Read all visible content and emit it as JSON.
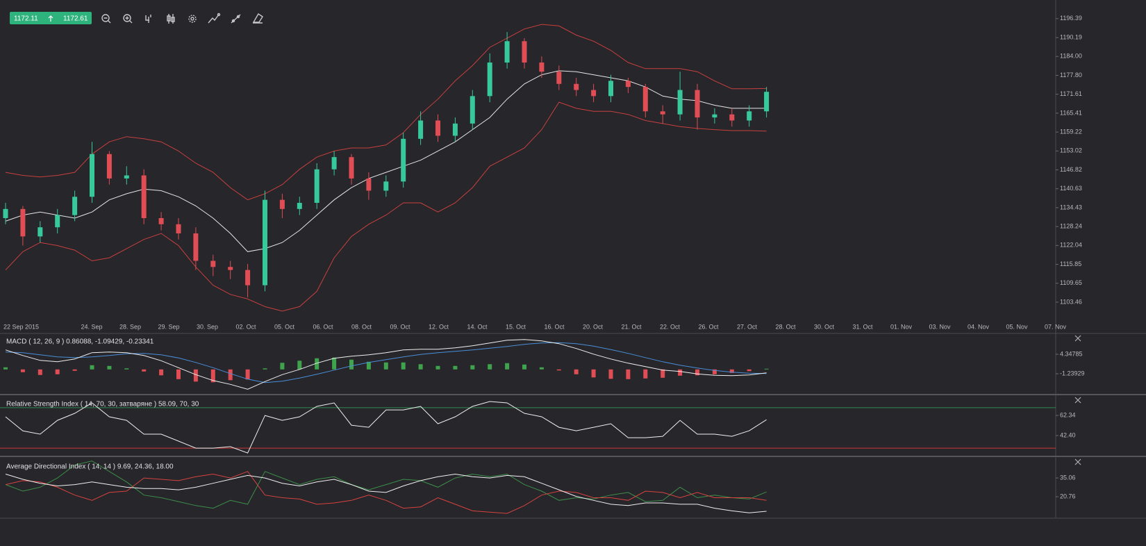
{
  "toolbar": {
    "bid": 1172.11,
    "ask": 1172.61
  },
  "chart_data": [
    {
      "type": "candlestick",
      "up_color": "#38c99b",
      "down_color": "#e04d54",
      "ylim": [
        1097.3,
        1202.5
      ],
      "yticks": [
        1196.39,
        1190.19,
        {
          "value": 1184,
          "label": "1184.00"
        },
        {
          "value": 1177.8,
          "label": "1177.80"
        },
        1171.61,
        1165.41,
        1159.22,
        1153.02,
        1146.82,
        1140.63,
        1134.43,
        1128.24,
        1122.04,
        1115.85,
        1109.65,
        1103.46
      ],
      "x_labels": [
        "22 Sep 2015",
        "24. Sep",
        "28. Sep",
        "29. Sep",
        "30. Sep",
        "02. Oct",
        "05. Oct",
        "06. Oct",
        "08. Oct",
        "09. Oct",
        "12. Oct",
        "14. Oct",
        "15. Oct",
        "16. Oct",
        "20. Oct",
        "21. Oct",
        "22. Oct",
        "26. Oct",
        "27. Oct",
        "28. Oct",
        "30. Oct",
        "31. Oct",
        "01. Nov",
        "03. Nov",
        "04. Nov",
        "05. Nov",
        "07. Nov"
      ],
      "open": [
        1131,
        1134,
        1125,
        1128,
        1132,
        1138,
        1152,
        1144,
        1145,
        1131,
        1129,
        1126,
        1117,
        1115,
        1114,
        1109,
        1137,
        1134,
        1136,
        1147,
        1151,
        1144,
        1140,
        1143,
        1157,
        1163,
        1158,
        1162,
        1171,
        1182,
        1189,
        1182,
        1179,
        1175,
        1173,
        1171,
        1176,
        1174,
        1166,
        1165,
        1173,
        1164,
        1165,
        1163,
        1166
      ],
      "high": [
        1136,
        1135,
        1130,
        1134,
        1140,
        1156,
        1153,
        1148,
        1147,
        1133,
        1131,
        1128,
        1119,
        1117,
        1116,
        1140,
        1139,
        1138,
        1149,
        1153,
        1152,
        1146,
        1145,
        1159,
        1166,
        1165,
        1164,
        1173,
        1185,
        1192,
        1190,
        1184,
        1181,
        1177,
        1175,
        1178,
        1177,
        1175,
        1168,
        1179,
        1175,
        1167,
        1167,
        1168,
        1174
      ],
      "low": [
        1129,
        1122,
        1123,
        1126,
        1130,
        1136,
        1142,
        1142,
        1129,
        1127,
        1124,
        1114,
        1112,
        1111,
        1105,
        1107,
        1131,
        1132,
        1134,
        1145,
        1142,
        1137,
        1138,
        1141,
        1155,
        1156,
        1156,
        1160,
        1169,
        1180,
        1180,
        1177,
        1173,
        1171,
        1169,
        1169,
        1172,
        1164,
        1162,
        1163,
        1160,
        1162,
        1161,
        1161,
        1164
      ],
      "close": [
        1134,
        1125,
        1128,
        1132,
        1138,
        1152,
        1144,
        1145,
        1131,
        1129,
        1126,
        1117,
        1115,
        1114,
        1109,
        1137,
        1134,
        1136,
        1147,
        1151,
        1144,
        1140,
        1143,
        1157,
        1163,
        1158,
        1162,
        1171,
        1182,
        1189,
        1182,
        1179,
        1175,
        1173,
        1171,
        1176,
        1174,
        1166,
        1165,
        1173,
        1164,
        1165,
        1163,
        1166,
        1172.4
      ],
      "bands": [
        {
          "color": "#c9403f",
          "values": [
            1146,
            1145,
            1144.5,
            1145,
            1146,
            1152,
            1156,
            1157.7,
            1157,
            1156,
            1153,
            1149,
            1146,
            1141,
            1137,
            1139,
            1142,
            1147,
            1151,
            1153,
            1154,
            1154,
            1155,
            1159,
            1165,
            1170,
            1176,
            1181,
            1187,
            1190,
            1193,
            1194.5,
            1194,
            1191,
            1189,
            1186,
            1182,
            1180,
            1180,
            1180,
            1179,
            1176,
            1173.4,
            1173.4,
            1173.5
          ]
        },
        {
          "color": "#e6e6e6",
          "values": [
            1130,
            1132,
            1133,
            1132,
            1131,
            1133,
            1137,
            1139,
            1140.5,
            1140,
            1138,
            1135,
            1131,
            1126,
            1120,
            1121,
            1123,
            1127,
            1132,
            1137,
            1141,
            1144,
            1146,
            1148,
            1150,
            1153,
            1156,
            1160,
            1164,
            1170,
            1175,
            1178,
            1179.3,
            1179,
            1178,
            1177,
            1176,
            1174,
            1171,
            1170,
            1169.5,
            1168,
            1167,
            1167,
            1167
          ]
        },
        {
          "color": "#c9403f",
          "values": [
            1114,
            1120,
            1123,
            1122,
            1120.5,
            1117,
            1118,
            1121,
            1124,
            1126,
            1122,
            1115,
            1109,
            1106,
            1104.5,
            1102,
            1100.5,
            1102,
            1107,
            1118,
            1125,
            1129,
            1132,
            1136,
            1136,
            1133,
            1136,
            1141,
            1148,
            1151,
            1154,
            1160,
            1169,
            1167,
            1166,
            1166,
            1165,
            1163,
            1162,
            1161,
            1160.4,
            1160,
            1159.7,
            1159.7,
            1159.5
          ]
        }
      ]
    },
    {
      "type": "macd",
      "title": "MACD ( 12, 26, 9 ) 0.86088, -1.09429, -0.23341",
      "ylim": [
        -7.23,
        10.34
      ],
      "yticks": [
        4.34785,
        -1.23929
      ],
      "series": [
        {
          "style": "bars",
          "color": "#3fa34d",
          "negative_color": "#e04d54",
          "values": [
            0.6,
            -0.8,
            -1.6,
            -1.4,
            -0.4,
            1.2,
            1,
            0.3,
            -0.6,
            -1.7,
            -2.8,
            -3.5,
            -3.7,
            -3.1,
            -2.9,
            0.3,
            1.9,
            2.5,
            3.2,
            3.4,
            2.8,
            2.2,
            2,
            2,
            1.5,
            1,
            1,
            1.2,
            1.5,
            1.8,
            1.4,
            0.6,
            -0.3,
            -1.4,
            -2.3,
            -2.7,
            -2.8,
            -2.6,
            -2.4,
            -1.8,
            -1.7,
            -1.4,
            -1,
            -0.5,
            0.2
          ]
        },
        {
          "style": "line",
          "color": "#4a8fd9",
          "values": [
            5,
            4.8,
            4.2,
            3.6,
            3.4,
            3.6,
            4,
            4.5,
            4.6,
            4.2,
            3.3,
            2,
            0.5,
            -1.2,
            -2.8,
            -3.8,
            -3.4,
            -2.5,
            -1.4,
            -0.2,
            1,
            2,
            2.8,
            3.6,
            4.3,
            4.8,
            5.2,
            5.6,
            6.1,
            6.6,
            7.2,
            7.6,
            7.7,
            7.4,
            6.7,
            5.7,
            4.6,
            3.4,
            2.2,
            1.2,
            0.4,
            -0.3,
            -0.8,
            -1.1,
            -1.2
          ]
        },
        {
          "style": "line",
          "color": "#f0f0f0",
          "values": [
            5.6,
            4,
            2.6,
            2.2,
            3,
            4.8,
            5,
            4.8,
            4,
            2.5,
            0.5,
            -1.5,
            -3.2,
            -4.3,
            -5.7,
            -3.5,
            -1.5,
            0,
            1.8,
            3.2,
            3.8,
            4.2,
            4.8,
            5.6,
            5.8,
            5.8,
            6.2,
            6.8,
            7.6,
            8.4,
            8.6,
            8.2,
            7.4,
            6,
            4.4,
            3,
            1.8,
            0.8,
            -0.2,
            -0.6,
            -1.3,
            -1.7,
            -1.8,
            -1.6,
            -1
          ]
        }
      ]
    },
    {
      "type": "line",
      "title": "Relative Strength Index ( 14, 70, 30, затваряне ) 58.09, 70, 30",
      "ylim": [
        22.5,
        81.6
      ],
      "yticks": [
        62.34,
        {
          "value": 42.4,
          "label": "42.40"
        }
      ],
      "levels": [
        {
          "value": 70,
          "color": "#2f8a4f"
        },
        {
          "value": 30,
          "color": "#d03a3a"
        }
      ],
      "series": [
        {
          "color": "#f0f0f0",
          "values": [
            61,
            47,
            43.8,
            57.5,
            64.4,
            74.7,
            61,
            57.5,
            43.8,
            43.8,
            36.9,
            30,
            30,
            31.4,
            25.2,
            62.3,
            57.5,
            61,
            71.3,
            74.7,
            52.7,
            50.6,
            67.8,
            67.8,
            71.3,
            54.1,
            61,
            71.3,
            76.1,
            74.7,
            64.4,
            61,
            50.6,
            47.2,
            50.6,
            54.1,
            40.3,
            40.3,
            41.7,
            57.5,
            43.8,
            43.8,
            41.7,
            47.2,
            58.09
          ]
        }
      ]
    },
    {
      "type": "line",
      "title": "Average Directional Index ( 14, 14 ) 9.69, 24.36, 18.00",
      "ylim": [
        4.9,
        49.9
      ],
      "yticks": [
        35.06,
        20.76
      ],
      "levels": [],
      "series": [
        {
          "color": "#3d8f4a",
          "values": [
            30,
            25,
            28,
            35,
            45,
            48,
            40,
            32,
            22,
            20,
            17,
            14,
            12,
            18,
            15,
            40,
            35,
            30,
            34,
            36,
            30,
            26,
            30,
            34,
            33,
            28,
            35,
            38,
            36,
            38,
            30,
            25,
            18,
            20,
            19,
            22,
            24,
            17,
            18,
            28,
            20,
            22,
            20,
            19,
            24.36
          ]
        },
        {
          "color": "#d8433f",
          "values": [
            30,
            33,
            32,
            28,
            22,
            18,
            24,
            25,
            35,
            34,
            33,
            36,
            38,
            35,
            40,
            22,
            20,
            19,
            15,
            16,
            18,
            22,
            18,
            12,
            13,
            20,
            15,
            10,
            9,
            8,
            14,
            22,
            25,
            24,
            20,
            20,
            18,
            25,
            24,
            20,
            24,
            20,
            20,
            20,
            18
          ]
        },
        {
          "color": "#f0f0f0",
          "values": [
            38,
            34,
            31,
            29,
            30,
            32,
            30,
            28,
            27,
            27,
            26,
            28,
            31,
            34,
            37,
            35,
            31,
            29,
            32,
            34,
            30,
            25,
            24,
            29,
            33,
            36,
            38,
            36,
            35,
            37,
            36,
            31,
            26,
            21,
            18,
            15,
            14,
            16,
            16,
            15,
            15,
            12,
            10,
            8.5,
            9.69
          ]
        }
      ]
    }
  ]
}
